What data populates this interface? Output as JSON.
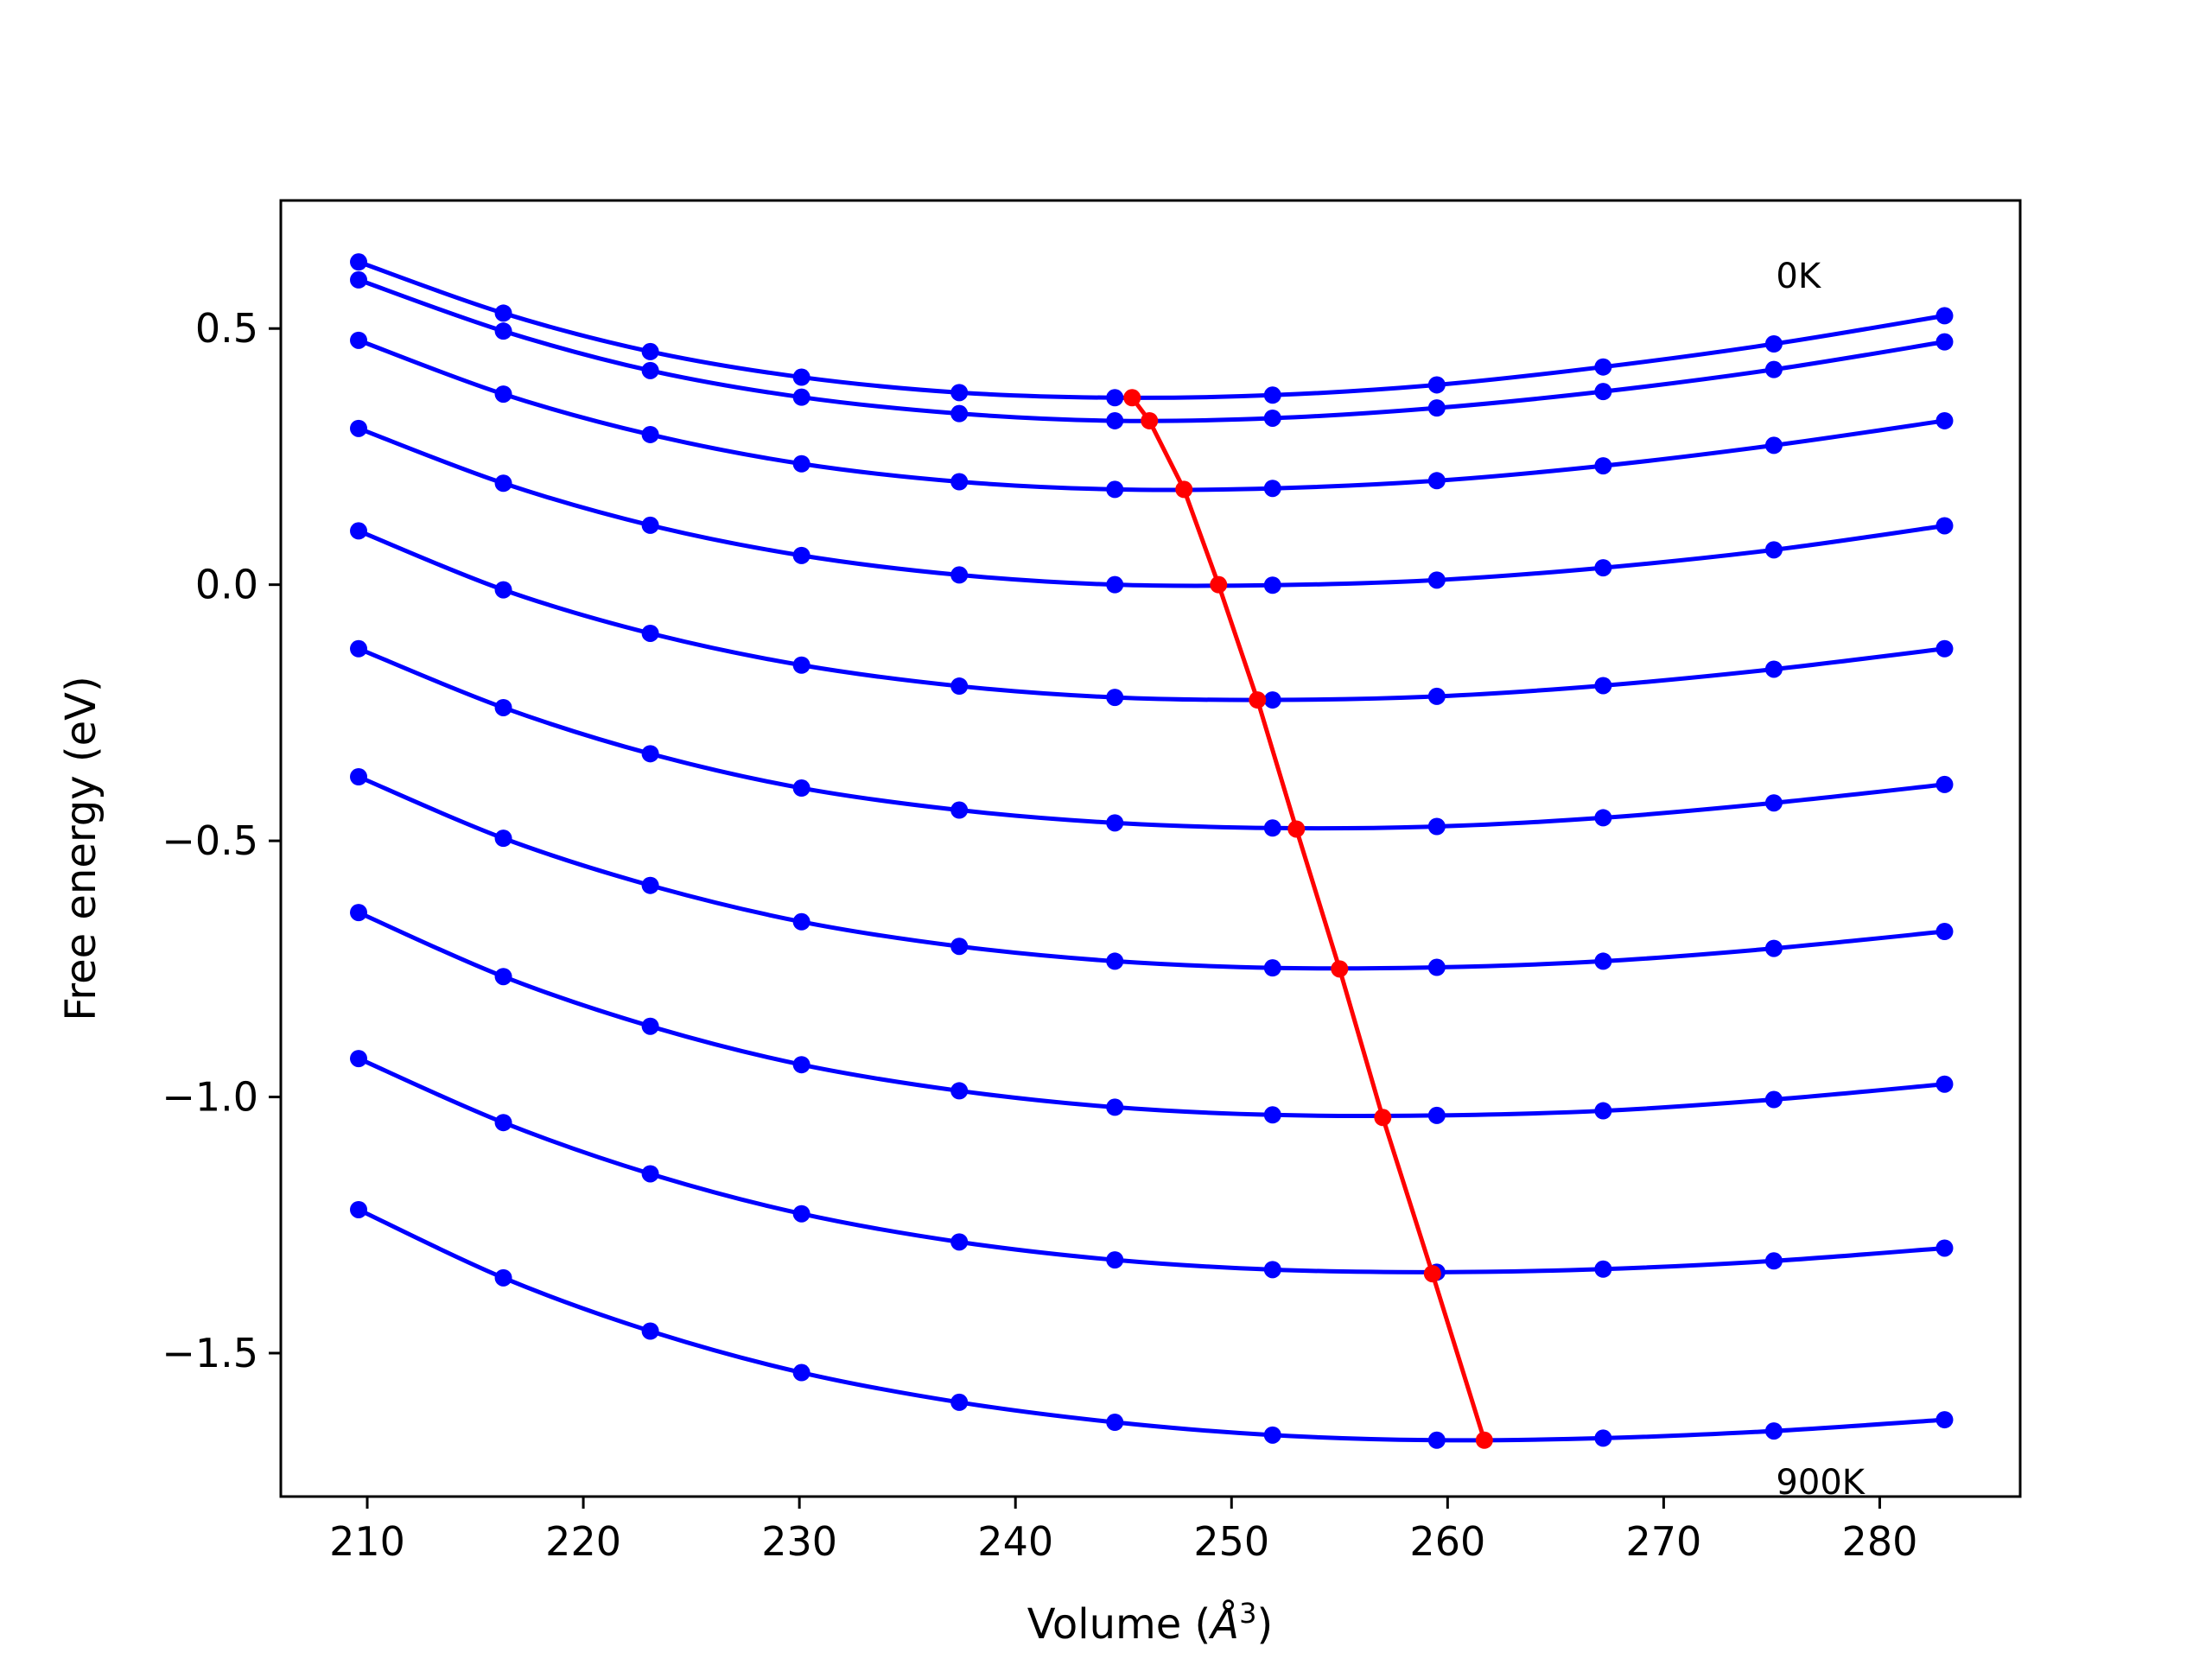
{
  "chart_data": {
    "type": "line",
    "title": "",
    "xlabel": "Volume (",
    "xlabel_symbol": "Å",
    "xlabel_exponent": "3",
    "xlabel_close": ")",
    "ylabel": "Free energy (eV)",
    "xlim": [
      206,
      286.5
    ],
    "ylim": [
      -1.78,
      0.75
    ],
    "xticks": [
      210,
      220,
      230,
      240,
      250,
      260,
      270,
      280
    ],
    "yticks": [
      0.5,
      0.0,
      -0.5,
      -1.0,
      -1.5
    ],
    "ytick_labels": [
      "0.5",
      "0.0",
      "−0.5",
      "−1.0",
      "−1.5"
    ],
    "xtick_labels": [
      "210",
      "220",
      "230",
      "240",
      "250",
      "260",
      "270",
      "280"
    ],
    "grid": false,
    "x": [
      209.6,
      216.3,
      223.1,
      230.1,
      237.4,
      244.6,
      251.9,
      259.5,
      267.2,
      275.1,
      283.0
    ],
    "series": [
      {
        "color": "#0000ff",
        "values": [
          0.63,
          0.53,
          0.455,
          0.405,
          0.375,
          0.365,
          0.37,
          0.39,
          0.425,
          0.47,
          0.525
        ]
      },
      {
        "color": "#0000ff",
        "values": [
          0.595,
          0.495,
          0.418,
          0.366,
          0.334,
          0.32,
          0.325,
          0.345,
          0.377,
          0.42,
          0.474
        ]
      },
      {
        "color": "#0000ff",
        "values": [
          0.477,
          0.372,
          0.293,
          0.236,
          0.201,
          0.186,
          0.188,
          0.203,
          0.232,
          0.272,
          0.32
        ]
      },
      {
        "color": "#0000ff",
        "values": [
          0.305,
          0.198,
          0.116,
          0.057,
          0.019,
          0.0,
          -0.001,
          0.009,
          0.033,
          0.068,
          0.115
        ]
      },
      {
        "color": "#0000ff",
        "values": [
          0.105,
          -0.01,
          -0.095,
          -0.157,
          -0.198,
          -0.22,
          -0.225,
          -0.218,
          -0.197,
          -0.165,
          -0.125
        ]
      },
      {
        "color": "#0000ff",
        "values": [
          -0.125,
          -0.24,
          -0.33,
          -0.397,
          -0.44,
          -0.465,
          -0.475,
          -0.472,
          -0.455,
          -0.426,
          -0.39
        ]
      },
      {
        "color": "#0000ff",
        "values": [
          -0.375,
          -0.495,
          -0.587,
          -0.658,
          -0.706,
          -0.735,
          -0.748,
          -0.747,
          -0.735,
          -0.71,
          -0.677
        ]
      },
      {
        "color": "#0000ff",
        "values": [
          -0.64,
          -0.765,
          -0.862,
          -0.937,
          -0.988,
          -1.02,
          -1.035,
          -1.036,
          -1.027,
          -1.005,
          -0.975
        ]
      },
      {
        "color": "#0000ff",
        "values": [
          -0.925,
          -1.05,
          -1.15,
          -1.228,
          -1.283,
          -1.318,
          -1.337,
          -1.342,
          -1.336,
          -1.32,
          -1.295
        ]
      },
      {
        "color": "#0000ff",
        "values": [
          -1.22,
          -1.353,
          -1.457,
          -1.538,
          -1.596,
          -1.635,
          -1.66,
          -1.67,
          -1.666,
          -1.652,
          -1.63
        ]
      }
    ],
    "minimum_line": {
      "color": "#ff0000",
      "x": [
        245.4,
        246.2,
        247.8,
        249.4,
        251.2,
        253.0,
        255.0,
        257.0,
        259.3,
        261.7
      ],
      "y": [
        0.365,
        0.32,
        0.186,
        0.0,
        -0.225,
        -0.477,
        -0.75,
        -1.04,
        -1.345,
        -1.67
      ]
    },
    "annotations": [
      {
        "text": "0K",
        "x": 275.2,
        "y": 0.58
      },
      {
        "text": "900K",
        "x": 275.2,
        "y": -1.775
      }
    ]
  }
}
